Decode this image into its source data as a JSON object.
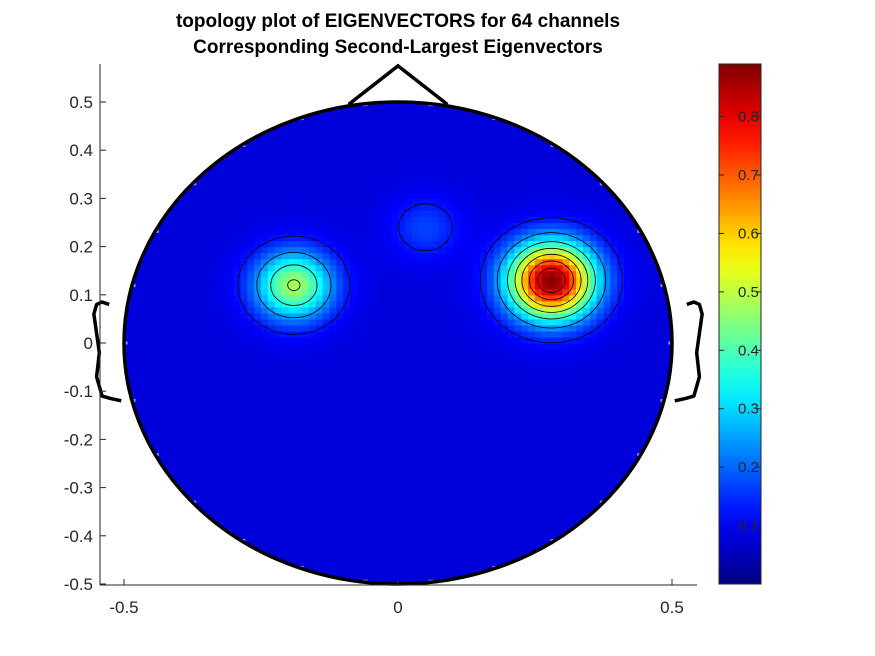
{
  "chart_data": {
    "type": "heatmap",
    "title": "topology plot of EIGENVECTORS for 64 channels",
    "subtitle": "Corresponding Second-Largest Eigenvectors",
    "xlabel": "",
    "ylabel": "",
    "xlim": [
      -0.55,
      0.55
    ],
    "ylim": [
      -0.51,
      0.58
    ],
    "x_ticks": [
      -0.5,
      0,
      0.5
    ],
    "x_tick_labels": [
      "-0.5",
      "0",
      "0.5"
    ],
    "y_ticks": [
      0.5,
      0.4,
      0.3,
      0.2,
      0.1,
      0,
      -0.1,
      -0.2,
      -0.3,
      -0.4,
      -0.5
    ],
    "y_tick_labels": [
      "0.5",
      "0.4",
      "0.3",
      "0.2",
      "0.1",
      "0",
      "-0.1",
      "-0.2",
      "-0.3",
      "-0.4",
      "-0.5"
    ],
    "colormap": "jet",
    "color_range": [
      0,
      0.89
    ],
    "colorbar_ticks": [
      0.8,
      0.7,
      0.6,
      0.5,
      0.4,
      0.3,
      0.2,
      0.1
    ],
    "colorbar_tick_labels": [
      "0.8",
      "0.7",
      "0.6",
      "0.5",
      "0.4",
      "0.3",
      "0.2",
      "0.1"
    ],
    "head_radius": 0.5,
    "background_level": 0.08,
    "peaks": [
      {
        "x": 0.28,
        "y": 0.13,
        "value": 0.89
      },
      {
        "x": -0.19,
        "y": 0.12,
        "value": 0.48
      },
      {
        "x": 0.05,
        "y": 0.24,
        "value": 0.17
      }
    ],
    "contour_levels": [
      0.13,
      0.24,
      0.36,
      0.47,
      0.58,
      0.7,
      0.81
    ],
    "grid": false
  }
}
